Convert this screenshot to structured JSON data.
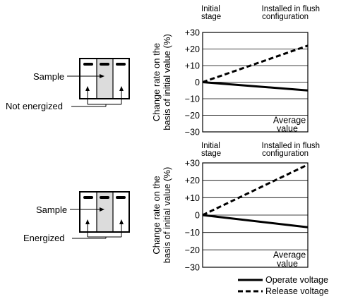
{
  "diagrams": [
    {
      "sample_label": "Sample",
      "state_label": "Not energized"
    },
    {
      "sample_label": "Sample",
      "state_label": "Energized"
    }
  ],
  "legend": {
    "operate": "Operate voltage",
    "release": "Release voltage"
  },
  "chart_data": [
    {
      "type": "line",
      "x": [
        0,
        1
      ],
      "xlabels": [
        "Initial stage",
        "Installed in flush configuration"
      ],
      "ylabel": "Change rate on the basis of initial value (%)",
      "ylim": [
        -30,
        30
      ],
      "yticks": [
        "+30",
        "+20",
        "+10",
        "0",
        "−10",
        "−20",
        "−30"
      ],
      "ytick_values": [
        30,
        20,
        10,
        0,
        -10,
        -20,
        -30
      ],
      "annotation": [
        "Average",
        "value"
      ],
      "grid": true,
      "series": [
        {
          "name": "Operate voltage",
          "style": "solid",
          "values": [
            0,
            -5
          ]
        },
        {
          "name": "Release voltage",
          "style": "dashed",
          "values": [
            0,
            22
          ]
        }
      ]
    },
    {
      "type": "line",
      "x": [
        0,
        1
      ],
      "xlabels": [
        "Initial stage",
        "Installed in flush configuration"
      ],
      "ylabel": "Change rate on the basis of initial value (%)",
      "ylim": [
        -30,
        30
      ],
      "yticks": [
        "+30",
        "+20",
        "+10",
        "0",
        "−10",
        "−20",
        "−30"
      ],
      "ytick_values": [
        30,
        20,
        10,
        0,
        -10,
        -20,
        -30
      ],
      "annotation": [
        "Average",
        "value"
      ],
      "grid": true,
      "series": [
        {
          "name": "Operate voltage",
          "style": "solid",
          "values": [
            0,
            -7
          ]
        },
        {
          "name": "Release voltage",
          "style": "dashed",
          "values": [
            0,
            29
          ]
        }
      ]
    }
  ]
}
